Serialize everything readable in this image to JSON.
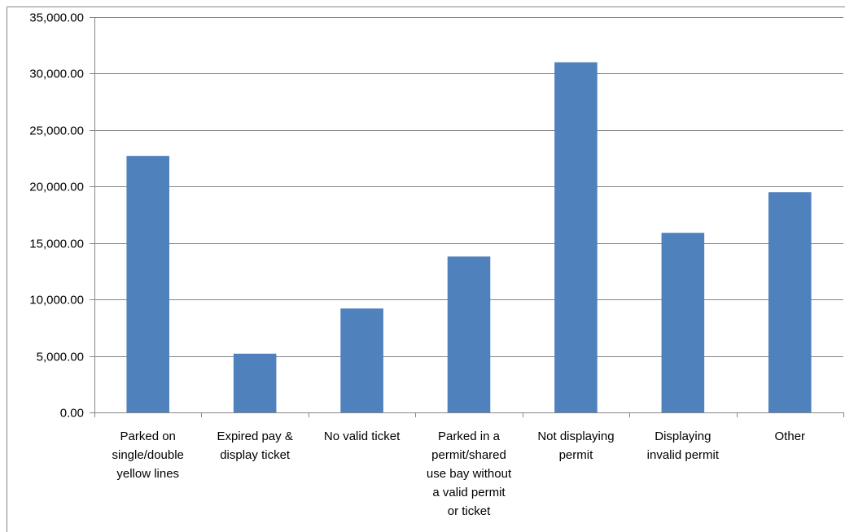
{
  "chart_data": {
    "type": "bar",
    "title": "",
    "xlabel": "",
    "ylabel": "",
    "ylim": [
      0,
      35000
    ],
    "yticks": [
      0,
      5000,
      10000,
      15000,
      20000,
      25000,
      30000,
      35000
    ],
    "ytick_labels": [
      "0.00",
      "5,000.00",
      "10,000.00",
      "15,000.00",
      "20,000.00",
      "25,000.00",
      "30,000.00",
      "35,000.00"
    ],
    "grid": true,
    "legend": "none",
    "categories": [
      [
        "Parked on",
        "single/double",
        "yellow lines"
      ],
      [
        "Expired pay &",
        "display ticket"
      ],
      [
        "No valid ticket"
      ],
      [
        "Parked in a",
        "permit/shared",
        "use bay without",
        "a valid permit",
        "or ticket"
      ],
      [
        "Not displaying",
        "permit"
      ],
      [
        "Displaying",
        "invalid permit"
      ],
      [
        "Other"
      ]
    ],
    "values": [
      22700,
      5200,
      9200,
      13800,
      31000,
      15900,
      19500
    ],
    "colors": {
      "bar": "#4f81bd",
      "grid": "#868686",
      "axis": "#868686",
      "border": "#868686"
    }
  }
}
